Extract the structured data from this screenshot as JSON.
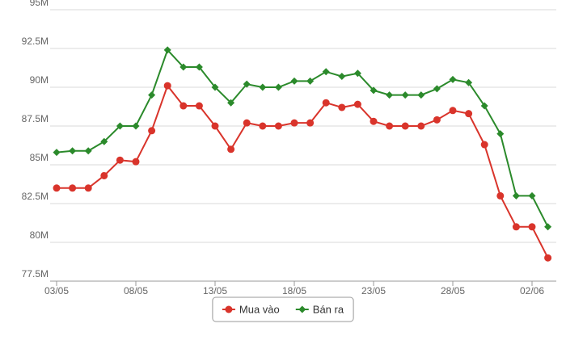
{
  "chart_data": {
    "type": "line",
    "categories": [
      "03/05",
      null,
      null,
      null,
      null,
      "08/05",
      null,
      null,
      null,
      null,
      "13/05",
      null,
      null,
      null,
      null,
      "18/05",
      null,
      null,
      null,
      null,
      "23/05",
      null,
      null,
      null,
      null,
      "28/05",
      null,
      null,
      null,
      null,
      "02/06",
      null
    ],
    "series": [
      {
        "name": "Mua vào",
        "color": "#d9342b",
        "marker": "circle",
        "values": [
          83.5,
          83.5,
          83.5,
          84.3,
          85.3,
          85.2,
          87.2,
          90.1,
          88.8,
          88.8,
          87.5,
          86.0,
          87.7,
          87.5,
          87.5,
          87.7,
          87.7,
          89.0,
          88.7,
          88.9,
          87.8,
          87.5,
          87.5,
          87.5,
          87.9,
          88.5,
          88.3,
          86.3,
          83.0,
          81.0,
          81.0,
          79.0
        ]
      },
      {
        "name": "Bán ra",
        "color": "#2b8a2b",
        "marker": "diamond",
        "values": [
          85.8,
          85.9,
          85.9,
          86.5,
          87.5,
          87.5,
          89.5,
          92.4,
          91.3,
          91.3,
          90.0,
          89.0,
          90.2,
          90.0,
          90.0,
          90.4,
          90.4,
          91.0,
          90.7,
          90.9,
          89.8,
          89.5,
          89.5,
          89.5,
          89.9,
          90.5,
          90.3,
          88.8,
          87.0,
          83.0,
          83.0,
          81.0
        ]
      }
    ],
    "ylim": [
      77.5,
      95
    ],
    "yticks": [
      {
        "value": 77.5,
        "label": "77.5M"
      },
      {
        "value": 80,
        "label": "80M"
      },
      {
        "value": 82.5,
        "label": "82.5M"
      },
      {
        "value": 85,
        "label": "85M"
      },
      {
        "value": 87.5,
        "label": "87.5M"
      },
      {
        "value": 90,
        "label": "90M"
      },
      {
        "value": 92.5,
        "label": "92.5M"
      },
      {
        "value": 95,
        "label": "95M"
      }
    ],
    "grid": true,
    "legend": "bottom"
  }
}
